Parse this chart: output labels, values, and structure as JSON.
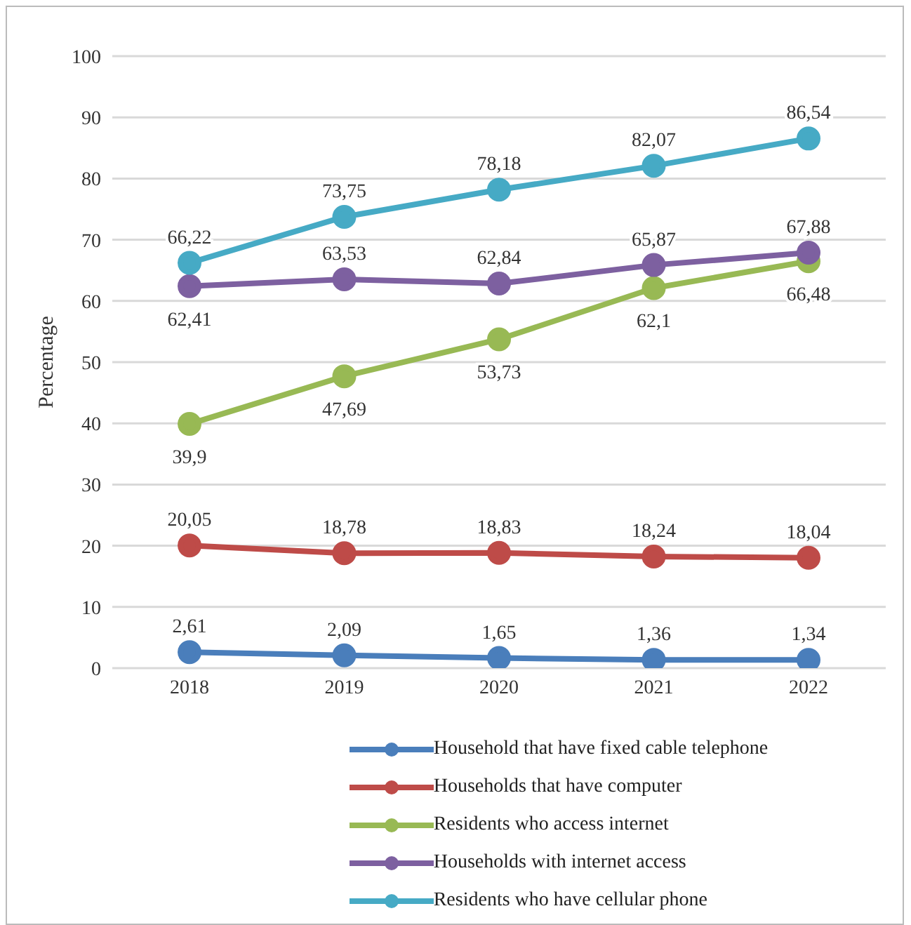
{
  "chart_data": {
    "type": "line",
    "ylabel": "Percentage",
    "categories": [
      "2018",
      "2019",
      "2020",
      "2021",
      "2022"
    ],
    "ylim": [
      0,
      100
    ],
    "yticks": [
      0,
      10,
      20,
      30,
      40,
      50,
      60,
      70,
      80,
      90,
      100
    ],
    "grid": "y",
    "legend": "bottom",
    "marker": "circle",
    "line_style": "solid",
    "series": [
      {
        "name": "Household that have fixed cable telephone",
        "color": "#4a7ebb",
        "values": [
          2.61,
          2.09,
          1.65,
          1.36,
          1.34
        ],
        "value_labels": [
          "2,61",
          "2,09",
          "1,65",
          "1,36",
          "1,34"
        ]
      },
      {
        "name": "Households that have computer",
        "color": "#be4b48",
        "values": [
          20.05,
          18.78,
          18.83,
          18.24,
          18.04
        ],
        "value_labels": [
          "20,05",
          "18,78",
          "18,83",
          "18,24",
          "18,04"
        ]
      },
      {
        "name": "Residents who access internet",
        "color": "#98b954",
        "values": [
          39.9,
          47.69,
          53.73,
          62.1,
          66.48
        ],
        "value_labels": [
          "39,9",
          "47,69",
          "53,73",
          "62,1",
          "66,48"
        ]
      },
      {
        "name": "Households with internet access",
        "color": "#7d60a0",
        "values": [
          62.41,
          63.53,
          62.84,
          65.87,
          67.88
        ],
        "value_labels": [
          "62,41",
          "63,53",
          "62,84",
          "65,87",
          "67,88"
        ]
      },
      {
        "name": "Residents who have cellular phone",
        "color": "#46aac5",
        "values": [
          66.22,
          73.75,
          78.18,
          82.07,
          86.54
        ],
        "value_labels": [
          "66,22",
          "73,75",
          "78,18",
          "82,07",
          "86,54"
        ]
      }
    ]
  }
}
